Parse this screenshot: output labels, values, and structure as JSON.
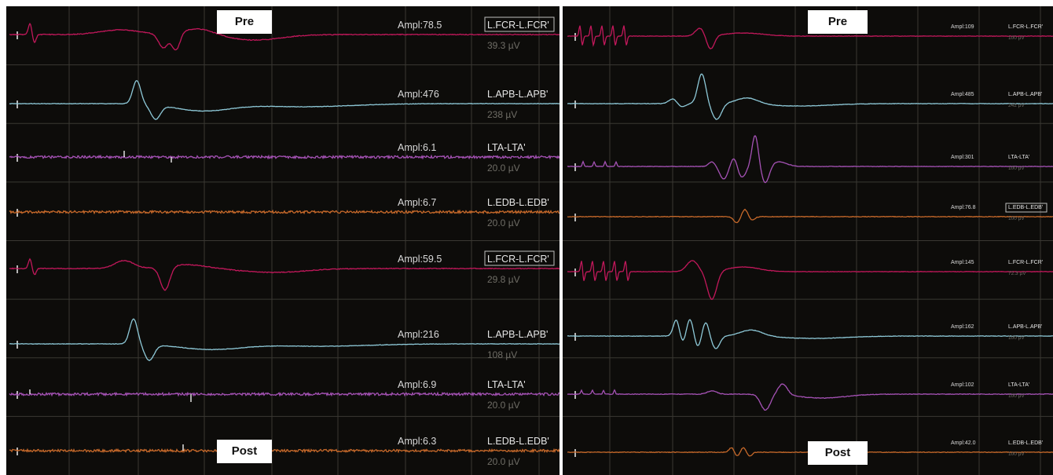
{
  "left": {
    "labels": {
      "pre": "Pre",
      "post": "Post"
    },
    "channels": [
      {
        "ampl": "Ampl:78.5",
        "name": "L.FCR-L.FCR'",
        "scale": "39.3 µV",
        "color": "#c2185b",
        "boxed": true
      },
      {
        "ampl": "Ampl:476",
        "name": "L.APB-L.APB'",
        "scale": "238 µV",
        "color": "#8ec9d8",
        "boxed": false
      },
      {
        "ampl": "Ampl:6.1",
        "name": "LTA-LTA'",
        "scale": "20.0 µV",
        "color": "#a552b5",
        "boxed": false
      },
      {
        "ampl": "Ampl:6.7",
        "name": "L.EDB-L.EDB'",
        "scale": "20.0 µV",
        "color": "#c7692a",
        "boxed": false
      },
      {
        "ampl": "Ampl:59.5",
        "name": "L.FCR-L.FCR'",
        "scale": "29.8 µV",
        "color": "#c2185b",
        "boxed": true
      },
      {
        "ampl": "Ampl:216",
        "name": "L.APB-L.APB'",
        "scale": "108 µV",
        "color": "#8ec9d8",
        "boxed": false
      },
      {
        "ampl": "Ampl:6.9",
        "name": "LTA-LTA'",
        "scale": "20.0 µV",
        "color": "#a552b5",
        "boxed": false
      },
      {
        "ampl": "Ampl:6.3",
        "name": "L.EDB-L.EDB'",
        "scale": "20.0 µV",
        "color": "#c7692a",
        "boxed": false
      }
    ]
  },
  "right": {
    "labels": {
      "pre": "Pre",
      "post": "Post"
    },
    "channels": [
      {
        "ampl": "Ampl:109",
        "name": "L.FCR-L.FCR'",
        "scale": "100 µV",
        "color": "#c2185b",
        "boxed": false
      },
      {
        "ampl": "Ampl:485",
        "name": "L.APB-L.APB'",
        "scale": "242 µV",
        "color": "#8ec9d8",
        "boxed": false
      },
      {
        "ampl": "Ampl:301",
        "name": "LTA-LTA'",
        "scale": "100 µV",
        "color": "#a552b5",
        "boxed": false
      },
      {
        "ampl": "Ampl:76.8",
        "name": "L.EDB-L.EDB'",
        "scale": "100 µV",
        "color": "#c7692a",
        "boxed": true
      },
      {
        "ampl": "Ampl:145",
        "name": "L.FCR-L.FCR'",
        "scale": "72.3 µV",
        "color": "#c2185b",
        "boxed": false
      },
      {
        "ampl": "Ampl:162",
        "name": "L.APB-L.APB'",
        "scale": "100 µV",
        "color": "#8ec9d8",
        "boxed": false
      },
      {
        "ampl": "Ampl:102",
        "name": "LTA-LTA'",
        "scale": "100 µV",
        "color": "#a552b5",
        "boxed": false
      },
      {
        "ampl": "Ampl:42.0",
        "name": "L.EDB-L.EDB'",
        "scale": "100 µV",
        "color": "#c7692a",
        "boxed": false
      }
    ]
  },
  "chart_data": {
    "type": "line",
    "title": "",
    "panels": [
      {
        "side": "left",
        "sections": [
          "Pre",
          "Post"
        ],
        "series": [
          {
            "name": "L.FCR-L.FCR'",
            "section": "Pre",
            "amplitude": 78.5,
            "scale_uV": 39.3
          },
          {
            "name": "L.APB-L.APB'",
            "section": "Pre",
            "amplitude": 476,
            "scale_uV": 238
          },
          {
            "name": "LTA-LTA'",
            "section": "Pre",
            "amplitude": 6.1,
            "scale_uV": 20.0
          },
          {
            "name": "L.EDB-L.EDB'",
            "section": "Pre",
            "amplitude": 6.7,
            "scale_uV": 20.0
          },
          {
            "name": "L.FCR-L.FCR'",
            "section": "Post",
            "amplitude": 59.5,
            "scale_uV": 29.8
          },
          {
            "name": "L.APB-L.APB'",
            "section": "Post",
            "amplitude": 216,
            "scale_uV": 108
          },
          {
            "name": "LTA-LTA'",
            "section": "Post",
            "amplitude": 6.9,
            "scale_uV": 20.0
          },
          {
            "name": "L.EDB-L.EDB'",
            "section": "Post",
            "amplitude": 6.3,
            "scale_uV": 20.0
          }
        ]
      },
      {
        "side": "right",
        "sections": [
          "Pre",
          "Post"
        ],
        "series": [
          {
            "name": "L.FCR-L.FCR'",
            "section": "Pre",
            "amplitude": 109,
            "scale_uV": 100
          },
          {
            "name": "L.APB-L.APB'",
            "section": "Pre",
            "amplitude": 485,
            "scale_uV": 242
          },
          {
            "name": "LTA-LTA'",
            "section": "Pre",
            "amplitude": 301,
            "scale_uV": 100
          },
          {
            "name": "L.EDB-L.EDB'",
            "section": "Pre",
            "amplitude": 76.8,
            "scale_uV": 100
          },
          {
            "name": "L.FCR-L.FCR'",
            "section": "Post",
            "amplitude": 145,
            "scale_uV": 72.3
          },
          {
            "name": "L.APB-L.APB'",
            "section": "Post",
            "amplitude": 162,
            "scale_uV": 100
          },
          {
            "name": "LTA-LTA'",
            "section": "Post",
            "amplitude": 102,
            "scale_uV": 100
          },
          {
            "name": "L.EDB-L.EDB'",
            "section": "Post",
            "amplitude": 42.0,
            "scale_uV": 100
          }
        ]
      }
    ],
    "grid": true
  }
}
